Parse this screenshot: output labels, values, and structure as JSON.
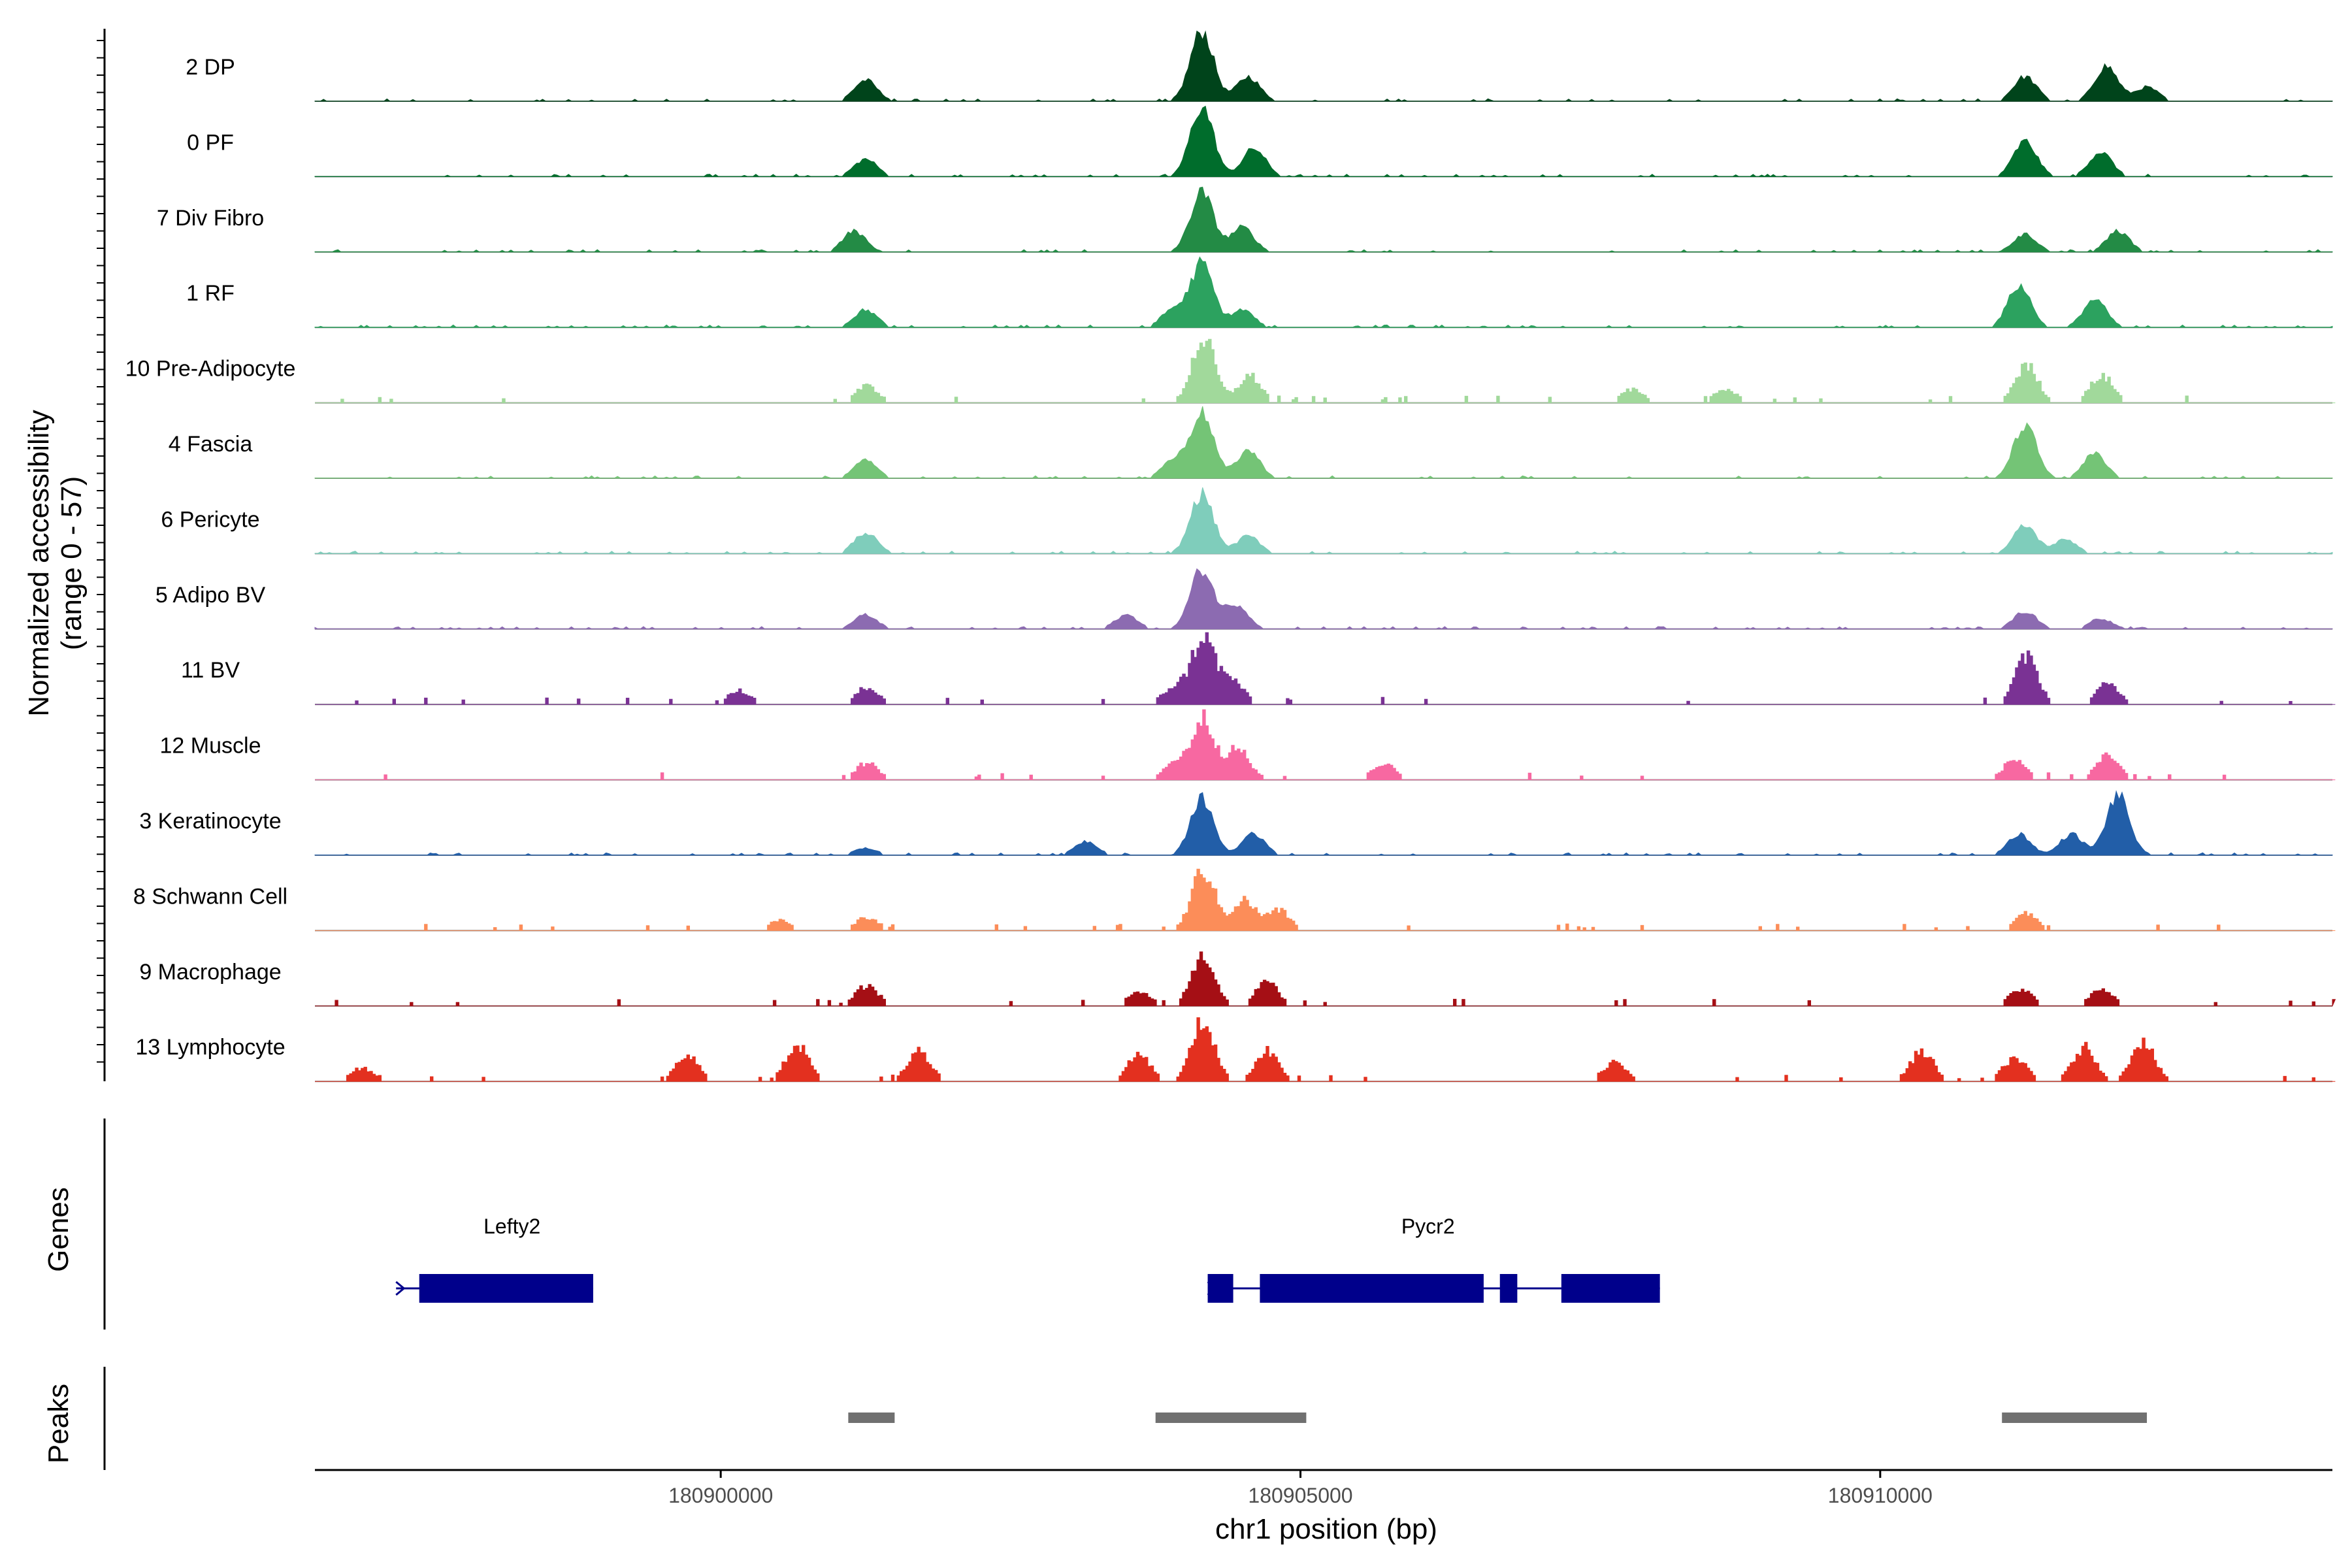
{
  "chart_data": {
    "type": "area",
    "title": "",
    "ylabel": "Normalized accessibility",
    "ylabel_range": "(range 0 - 57)",
    "xlabel": "chr1 position (bp)",
    "xlim": [
      180896500,
      180913900
    ],
    "ylim": [
      0,
      57
    ],
    "x_ticks": [
      180900000,
      180905000,
      180910000
    ],
    "x_tick_labels": [
      "180900000",
      "180905000",
      "180910000"
    ],
    "tracks": [
      {
        "name": "2 DP",
        "color": "#00441b",
        "shape": 0,
        "peaks": [
          [
            180901250,
            0.3
          ],
          [
            180904150,
            1.0
          ],
          [
            180904550,
            0.35
          ],
          [
            180911250,
            0.35
          ],
          [
            180911950,
            0.5
          ],
          [
            180912300,
            0.2
          ]
        ]
      },
      {
        "name": "0 PF",
        "color": "#006d2c",
        "shape": 0,
        "peaks": [
          [
            180901250,
            0.25
          ],
          [
            180904150,
            1.0
          ],
          [
            180904600,
            0.4
          ],
          [
            180911250,
            0.5
          ],
          [
            180911900,
            0.35
          ]
        ]
      },
      {
        "name": "7 Div Fibro",
        "color": "#238b45",
        "shape": 0,
        "peaks": [
          [
            180901150,
            0.3
          ],
          [
            180904150,
            0.85
          ],
          [
            180904500,
            0.35
          ],
          [
            180911250,
            0.25
          ],
          [
            180912050,
            0.3
          ]
        ]
      },
      {
        "name": "1 RF",
        "color": "#2ca25f",
        "shape": 0,
        "peaks": [
          [
            180901250,
            0.25
          ],
          [
            180903900,
            0.25
          ],
          [
            180904150,
            0.9
          ],
          [
            180904500,
            0.25
          ],
          [
            180911200,
            0.6
          ],
          [
            180911850,
            0.4
          ]
        ]
      },
      {
        "name": "10 Pre-Adipocyte",
        "color": "#a1d99b",
        "shape": 1,
        "peaks": [
          [
            180901250,
            0.25
          ],
          [
            180904150,
            0.95
          ],
          [
            180904550,
            0.4
          ],
          [
            180907850,
            0.2
          ],
          [
            180908650,
            0.2
          ],
          [
            180911250,
            0.55
          ],
          [
            180911900,
            0.4
          ]
        ]
      },
      {
        "name": "4 Fascia",
        "color": "#74c476",
        "shape": 0,
        "peaks": [
          [
            180901250,
            0.25
          ],
          [
            180903900,
            0.25
          ],
          [
            180904150,
            0.95
          ],
          [
            180904550,
            0.4
          ],
          [
            180911250,
            0.75
          ],
          [
            180911850,
            0.35
          ]
        ]
      },
      {
        "name": "6 Pericyte",
        "color": "#7fcdbb",
        "shape": 0,
        "peaks": [
          [
            180901250,
            0.3
          ],
          [
            180904150,
            0.85
          ],
          [
            180904550,
            0.25
          ],
          [
            180911250,
            0.4
          ],
          [
            180911600,
            0.2
          ]
        ]
      },
      {
        "name": "5 Adipo BV",
        "color": "#8c6bb1",
        "shape": 0,
        "peaks": [
          [
            180901250,
            0.2
          ],
          [
            180903500,
            0.2
          ],
          [
            180904150,
            0.85
          ],
          [
            180904450,
            0.35
          ],
          [
            180911250,
            0.25
          ],
          [
            180911900,
            0.15
          ]
        ]
      },
      {
        "name": "11 BV",
        "color": "#7a3294",
        "shape": 1,
        "peaks": [
          [
            180900150,
            0.2
          ],
          [
            180901250,
            0.25
          ],
          [
            180903900,
            0.25
          ],
          [
            180904150,
            1.0
          ],
          [
            180904400,
            0.35
          ],
          [
            180911250,
            0.7
          ],
          [
            180911950,
            0.3
          ]
        ]
      },
      {
        "name": "12 Muscle",
        "color": "#f768a1",
        "shape": 1,
        "peaks": [
          [
            180901250,
            0.25
          ],
          [
            180903900,
            0.25
          ],
          [
            180904150,
            0.9
          ],
          [
            180904450,
            0.45
          ],
          [
            180905700,
            0.25
          ],
          [
            180911150,
            0.3
          ],
          [
            180911950,
            0.35
          ]
        ]
      },
      {
        "name": "3 Keratinocyte",
        "color": "#225ea8",
        "shape": 0,
        "peaks": [
          [
            180901250,
            0.1
          ],
          [
            180903150,
            0.2
          ],
          [
            180904150,
            0.8
          ],
          [
            180904600,
            0.3
          ],
          [
            180911200,
            0.3
          ],
          [
            180912050,
            0.85
          ],
          [
            180911650,
            0.3
          ]
        ]
      },
      {
        "name": "8 Schwann Cell",
        "color": "#fc8d59",
        "shape": 1,
        "peaks": [
          [
            180900500,
            0.15
          ],
          [
            180901250,
            0.2
          ],
          [
            180904150,
            0.9
          ],
          [
            180904500,
            0.45
          ],
          [
            180904800,
            0.3
          ],
          [
            180911250,
            0.25
          ]
        ]
      },
      {
        "name": "9 Macrophage",
        "color": "#a50f15",
        "shape": 1,
        "peaks": [
          [
            180901250,
            0.3
          ],
          [
            180903600,
            0.2
          ],
          [
            180904150,
            0.75
          ],
          [
            180904700,
            0.35
          ],
          [
            180911200,
            0.25
          ],
          [
            180911900,
            0.25
          ]
        ]
      },
      {
        "name": "13 Lymphocyte",
        "color": "#e3301f",
        "shape": 1,
        "peaks": [
          [
            180896900,
            0.2
          ],
          [
            180899700,
            0.4
          ],
          [
            180900650,
            0.55
          ],
          [
            180901700,
            0.45
          ],
          [
            180903600,
            0.4
          ],
          [
            180904150,
            0.9
          ],
          [
            180904700,
            0.45
          ],
          [
            180907700,
            0.3
          ],
          [
            180910350,
            0.45
          ],
          [
            180911150,
            0.35
          ],
          [
            180911750,
            0.5
          ],
          [
            180912250,
            0.6
          ]
        ]
      }
    ],
    "genes_label": "Genes",
    "genes": [
      {
        "name": "Lefty2",
        "start": 180897200,
        "end": 180898900,
        "exons": [
          [
            180897400,
            180898900
          ]
        ]
      },
      {
        "name": "Pycr2",
        "start": 180904200,
        "end": 180908100,
        "exons": [
          [
            180904200,
            180904420
          ],
          [
            180904650,
            180906580
          ],
          [
            180906720,
            180906870
          ],
          [
            180907250,
            180908100
          ]
        ]
      }
    ],
    "peaks_label": "Peaks",
    "peak_regions": [
      [
        180901100,
        180901500
      ],
      [
        180903750,
        180905050
      ],
      [
        180911050,
        180912300
      ]
    ]
  }
}
